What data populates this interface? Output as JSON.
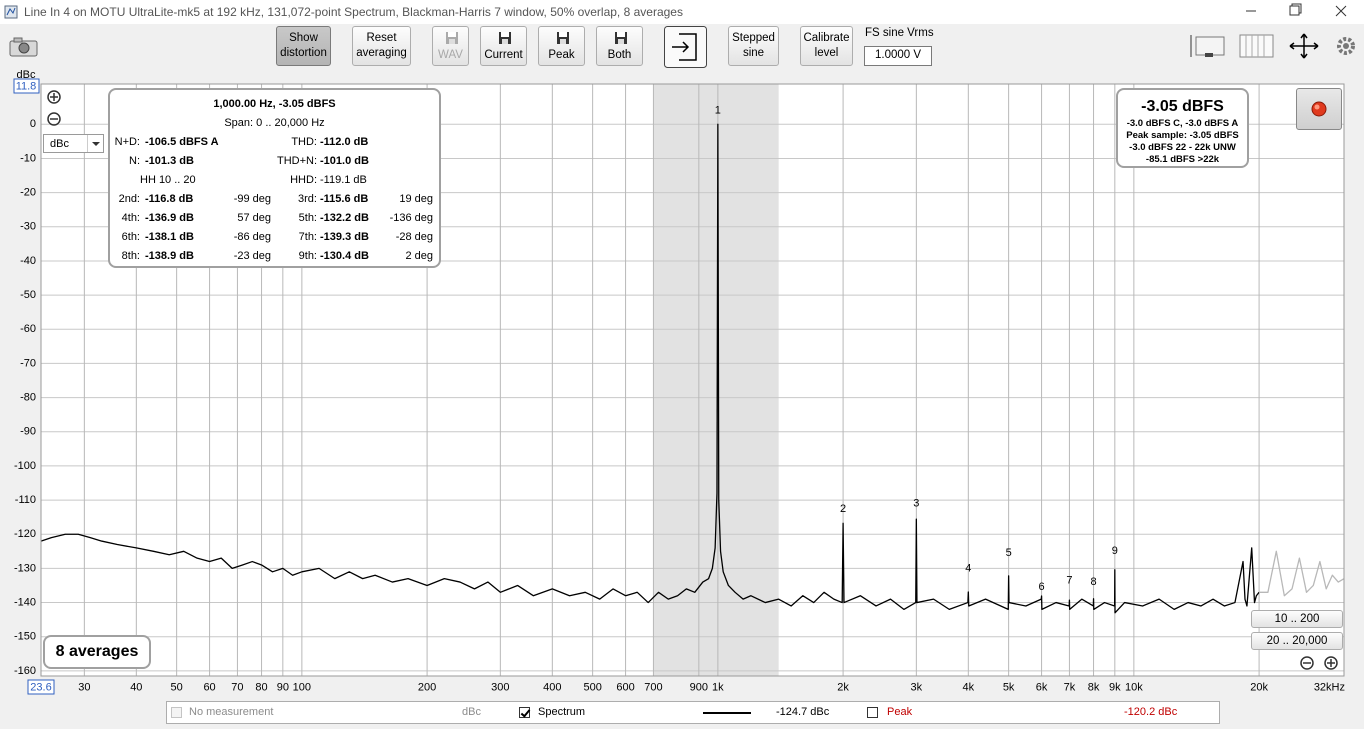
{
  "window": {
    "title": "Line In 4 on MOTU UltraLite-mk5 at 192 kHz, 131,072-point Spectrum, Blackman-Harris 7 window, 50% overlap, 8 averages"
  },
  "toolbar": {
    "buttons": [
      "Show distortion",
      "Reset averaging",
      "WAV",
      "Current",
      "Peak",
      "Both",
      "Stepped sine",
      "Calibrate level"
    ],
    "fs_label": "FS sine Vrms",
    "fs_value": "1.0000 V"
  },
  "chart_data": {
    "type": "line",
    "y_unit": "dBc",
    "unit_select": "dBc",
    "log_x": true,
    "grid": true,
    "xlim": [
      23.6,
      32000
    ],
    "ylim": [
      -161.5,
      11.8
    ],
    "yticks": [
      0,
      -10,
      -20,
      -30,
      -40,
      -50,
      -60,
      -70,
      -80,
      -90,
      -100,
      -110,
      -120,
      -130,
      -140,
      -150,
      -160
    ],
    "xticks": [
      30,
      40,
      50,
      60,
      70,
      80,
      90,
      100,
      200,
      300,
      400,
      500,
      600,
      700,
      900,
      {
        "value": 1000,
        "label": "1k"
      },
      {
        "value": 2000,
        "label": "2k"
      },
      {
        "value": 3000,
        "label": "3k"
      },
      {
        "value": 4000,
        "label": "4k"
      },
      {
        "value": 5000,
        "label": "5k"
      },
      {
        "value": 6000,
        "label": "6k"
      },
      {
        "value": 7000,
        "label": "7k"
      },
      {
        "value": 8000,
        "label": "8k"
      },
      {
        "value": 9000,
        "label": "9k"
      },
      {
        "value": 10000,
        "label": "10k"
      },
      {
        "value": 20000,
        "label": "20k"
      },
      {
        "value": 32000,
        "label": "32kHz"
      }
    ],
    "shaded_band": [
      700,
      1400
    ],
    "series": [
      {
        "name": "Spectrum",
        "color": "#000000",
        "x": [
          23.6,
          25,
          27,
          29,
          31,
          33,
          36,
          40,
          44,
          48,
          52,
          56,
          60,
          64,
          68,
          72,
          76,
          80,
          85,
          90,
          95,
          100,
          110,
          120,
          130,
          140,
          150,
          165,
          180,
          200,
          220,
          240,
          260,
          280,
          300,
          330,
          360,
          400,
          440,
          480,
          520,
          560,
          600,
          640,
          680,
          720,
          760,
          800,
          840,
          880,
          920,
          950,
          970,
          985,
          995,
          1000,
          1005,
          1015,
          1030,
          1060,
          1100,
          1150,
          1200,
          1300,
          1400,
          1500,
          1600,
          1700,
          1800,
          1900,
          1990,
          2000,
          2010,
          2200,
          2400,
          2600,
          2800,
          2990,
          3000,
          3010,
          3300,
          3600,
          3990,
          4000,
          4010,
          4400,
          4990,
          5000,
          5010,
          5500,
          5990,
          6000,
          6010,
          6500,
          6990,
          7000,
          7010,
          7500,
          7990,
          8000,
          8010,
          8500,
          8990,
          9000,
          9010,
          9500,
          10500,
          11500,
          12500,
          13500,
          14500,
          15500,
          16500,
          17500,
          18300,
          18500,
          18700,
          19200,
          19500,
          19700,
          20000
        ],
        "values": [
          -122,
          -121,
          -120,
          -120,
          -121,
          -122,
          -123,
          -124,
          -125,
          -126,
          -125,
          -127,
          -128,
          -127,
          -130,
          -129,
          -128,
          -129,
          -131,
          -130,
          -132,
          -131,
          -130,
          -133,
          -131,
          -133,
          -132,
          -134,
          -133,
          -135,
          -133,
          -134,
          -136,
          -134,
          -137,
          -135,
          -138,
          -136,
          -138,
          -137,
          -139,
          -136,
          -138,
          -137,
          -140,
          -137,
          -139,
          -138,
          -136,
          -137,
          -134,
          -133,
          -130,
          -124,
          -108,
          0,
          -110,
          -125,
          -131,
          -135,
          -137,
          -139,
          -138,
          -140,
          -139,
          -141,
          -138,
          -140,
          -137,
          -139,
          -140,
          -116.8,
          -140,
          -138,
          -141,
          -139,
          -142,
          -140,
          -115.6,
          -140,
          -139,
          -142,
          -140,
          -136.9,
          -141,
          -139,
          -142,
          -132.2,
          -140,
          -141,
          -139,
          -138.1,
          -142,
          -140,
          -141,
          -139.3,
          -142,
          -139,
          -141,
          -138.9,
          -142,
          -140,
          -141,
          -130.4,
          -143,
          -140,
          -141,
          -139,
          -142,
          -140,
          -141,
          -139,
          -141,
          -140,
          -128,
          -139,
          -141,
          -124,
          -140,
          -138,
          -137
        ]
      },
      {
        "color": "#b8b8b8",
        "x": [
          20000,
          21000,
          22000,
          23000,
          24000,
          25000,
          26000,
          27000,
          28000,
          29000,
          30000,
          31000,
          32000
        ],
        "values": [
          -137,
          -137,
          -125,
          -138,
          -136,
          -127,
          -137,
          -135,
          -128,
          -136,
          -132,
          -134,
          -133
        ]
      }
    ],
    "harmonic_markers": [
      {
        "label": "1",
        "x": 1000,
        "y": 4
      },
      {
        "label": "2",
        "x": 2000,
        "y": -112.7
      },
      {
        "label": "3",
        "x": 3000,
        "y": -111
      },
      {
        "label": "4",
        "x": 4000,
        "y": -130
      },
      {
        "label": "5",
        "x": 5000,
        "y": -125.5
      },
      {
        "label": "6",
        "x": 6000,
        "y": -135.5
      },
      {
        "label": "7",
        "x": 7000,
        "y": -133.5
      },
      {
        "label": "8",
        "x": 8000,
        "y": -134
      },
      {
        "label": "9",
        "x": 9000,
        "y": -125
      }
    ]
  },
  "distortion_panel": {
    "header": "1,000.00 Hz, -3.05 dBFS",
    "span": "Span: 0 .. 20,000 Hz",
    "rows": [
      [
        "N+D:",
        "-106.5 dBFS A",
        null,
        "THD:",
        "-112.0 dB",
        null
      ],
      [
        "N:",
        "-101.3 dB",
        null,
        "THD+N:",
        "-101.0 dB",
        null
      ],
      [
        null,
        "HH 10 .. 20",
        null,
        "HHD:",
        "-119.1 dB",
        null
      ],
      [
        "2nd:",
        "-116.8 dB",
        "-99 deg",
        "3rd:",
        "-115.6 dB",
        "19 deg"
      ],
      [
        "4th:",
        "-136.9 dB",
        "57 deg",
        "5th:",
        "-132.2 dB",
        "-136 deg"
      ],
      [
        "6th:",
        "-138.1 dB",
        "-86 deg",
        "7th:",
        "-139.3 dB",
        "-28 deg"
      ],
      [
        "8th:",
        "-138.9 dB",
        "-23 deg",
        "9th:",
        "-130.4 dB",
        "2 deg"
      ]
    ]
  },
  "level_panel": {
    "main": "-3.05 dBFS",
    "lines": [
      "-3.0 dBFS C, -3.0 dBFS A",
      "Peak sample: -3.05 dBFS",
      "-3.0 dBFS 22 - 22k UNW",
      "-85.1 dBFS >22k"
    ]
  },
  "averages": "8 averages",
  "range_buttons": [
    "10 .. 200",
    "20 .. 20,000"
  ],
  "legend": [
    {
      "label": "No measurement",
      "reading": "dBc",
      "checked": false,
      "enabled": false,
      "color": "#8c8c8c"
    },
    {
      "label": "Spectrum",
      "reading": "-124.7 dBc",
      "checked": true,
      "enabled": true,
      "color": "#000000"
    },
    {
      "label": "Peak",
      "reading": "-120.2 dBc",
      "checked": false,
      "enabled": true,
      "color": "#c00000"
    }
  ]
}
